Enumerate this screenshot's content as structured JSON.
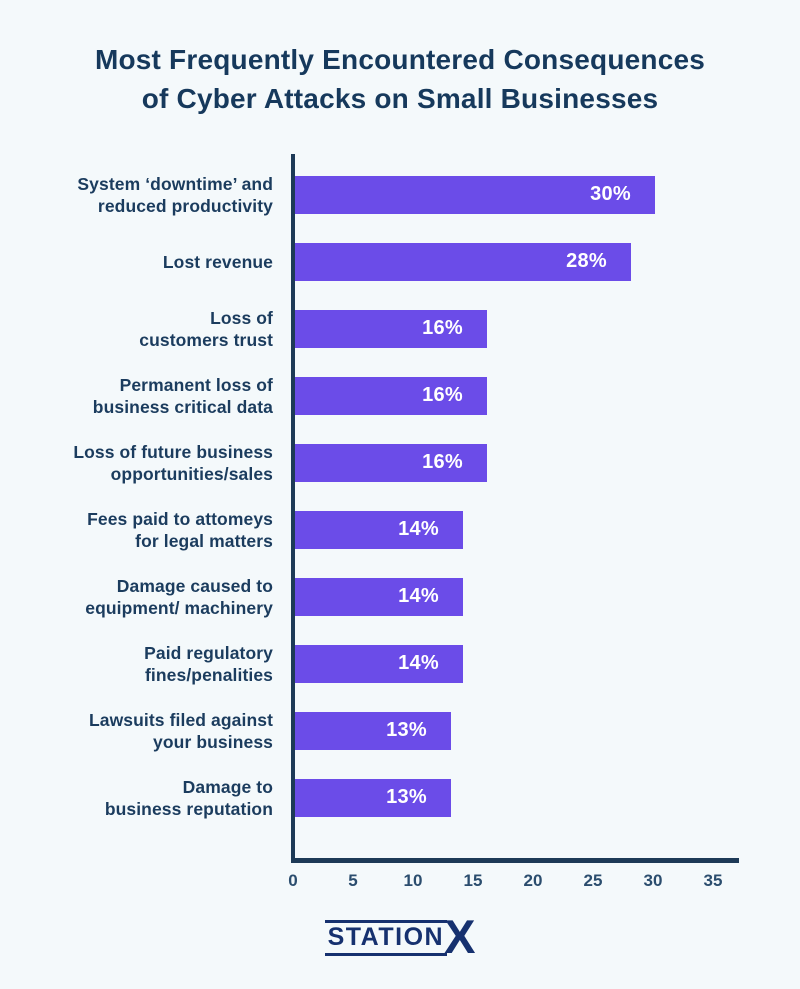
{
  "page": {
    "background": "#f4f9fb"
  },
  "title": {
    "line1": "Most Frequently Encountered Consequences",
    "line2": "of Cyber Attacks on Small Businesses"
  },
  "chart_data": {
    "type": "bar",
    "orientation": "horizontal",
    "title": "Most Frequently Encountered Consequences of Cyber Attacks on Small Businesses",
    "xlabel": "",
    "ylabel": "",
    "xlim": [
      0,
      35
    ],
    "x_ticks": [
      0,
      5,
      10,
      15,
      20,
      25,
      30,
      35
    ],
    "grid": false,
    "legend": false,
    "bar_color": "#6b4ce8",
    "axis_color": "#1d3a57",
    "value_label_color": "#ffffff",
    "categories": [
      "System ‘downtime’ and reduced productivity",
      "Lost revenue",
      "Loss of customers trust",
      "Permanent loss of business critical data",
      "Loss of future business opportunities/sales",
      "Fees paid to attomeys for legal matters",
      "Damage caused to equipment/ machinery",
      "Paid regulatory fines/penalities",
      "Lawsuits filed against your business",
      "Damage to business reputation"
    ],
    "values": [
      30,
      28,
      16,
      16,
      16,
      14,
      14,
      14,
      13,
      13
    ],
    "rows": [
      {
        "label_lines": [
          "System ‘downtime’ and",
          "reduced productivity"
        ],
        "value": 30,
        "value_label": "30%"
      },
      {
        "label_lines": [
          "Lost revenue"
        ],
        "value": 28,
        "value_label": "28%"
      },
      {
        "label_lines": [
          "Loss of",
          "customers trust"
        ],
        "value": 16,
        "value_label": "16%"
      },
      {
        "label_lines": [
          "Permanent loss of",
          "business critical data"
        ],
        "value": 16,
        "value_label": "16%"
      },
      {
        "label_lines": [
          "Loss of future business",
          "opportunities/sales"
        ],
        "value": 16,
        "value_label": "16%"
      },
      {
        "label_lines": [
          "Fees paid to attomeys",
          "for legal matters"
        ],
        "value": 14,
        "value_label": "14%"
      },
      {
        "label_lines": [
          "Damage caused to",
          "equipment/ machinery"
        ],
        "value": 14,
        "value_label": "14%"
      },
      {
        "label_lines": [
          "Paid regulatory",
          "fines/penalities"
        ],
        "value": 14,
        "value_label": "14%"
      },
      {
        "label_lines": [
          "Lawsuits filed against",
          "your business"
        ],
        "value": 13,
        "value_label": "13%"
      },
      {
        "label_lines": [
          "Damage to",
          "business reputation"
        ],
        "value": 13,
        "value_label": "13%"
      }
    ]
  },
  "footer": {
    "logo_main": "STATION",
    "logo_x": "X",
    "logo_color": "#16316f"
  }
}
